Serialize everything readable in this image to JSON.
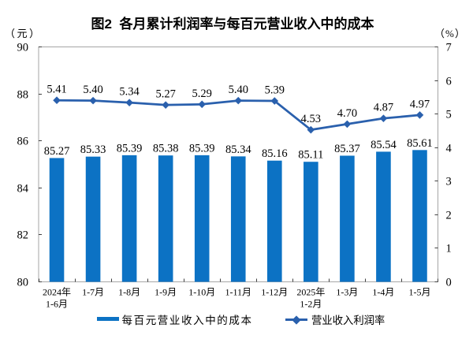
{
  "chart_data": {
    "type": "bar+line dual axis",
    "title": "图2  各月累计利润率与每百元营业收入中的成本",
    "left_axis": {
      "unit_label": "（元）",
      "min": 80,
      "max": 90,
      "step": 2,
      "tick_labels": [
        "90",
        "88",
        "86",
        "84",
        "82",
        "80"
      ]
    },
    "right_axis": {
      "unit_label": "（%）",
      "min": 0,
      "max": 7,
      "step": 1,
      "tick_labels": [
        "7",
        "6",
        "5",
        "4",
        "3",
        "2",
        "1",
        "0"
      ]
    },
    "categories": [
      {
        "line1": "2024年",
        "line2": "1-6月"
      },
      {
        "line1": "1-7月",
        "line2": ""
      },
      {
        "line1": "1-8月",
        "line2": ""
      },
      {
        "line1": "1-9月",
        "line2": ""
      },
      {
        "line1": "1-10月",
        "line2": ""
      },
      {
        "line1": "1-11月",
        "line2": ""
      },
      {
        "line1": "1-12月",
        "line2": ""
      },
      {
        "line1": "2025年",
        "line2": "1-2月"
      },
      {
        "line1": "1-3月",
        "line2": ""
      },
      {
        "line1": "1-4月",
        "line2": ""
      },
      {
        "line1": "1-5月",
        "line2": ""
      }
    ],
    "series": [
      {
        "name": "每百元营业收入中的成本",
        "type": "bar",
        "axis": "left",
        "color": "#0c72c4",
        "values": [
          85.27,
          85.33,
          85.39,
          85.38,
          85.39,
          85.34,
          85.16,
          85.11,
          85.37,
          85.54,
          85.61
        ]
      },
      {
        "name": "营业收入利润率",
        "type": "line",
        "axis": "right",
        "color": "#2a60ad",
        "marker": "diamond",
        "values": [
          5.41,
          5.4,
          5.34,
          5.27,
          5.29,
          5.4,
          5.39,
          4.53,
          4.7,
          4.87,
          4.97
        ]
      }
    ],
    "grid": false,
    "legend_position": "bottom",
    "plot_border_color": "#a6a6a6",
    "tick_color": "#404040",
    "text_color": "#000000"
  }
}
